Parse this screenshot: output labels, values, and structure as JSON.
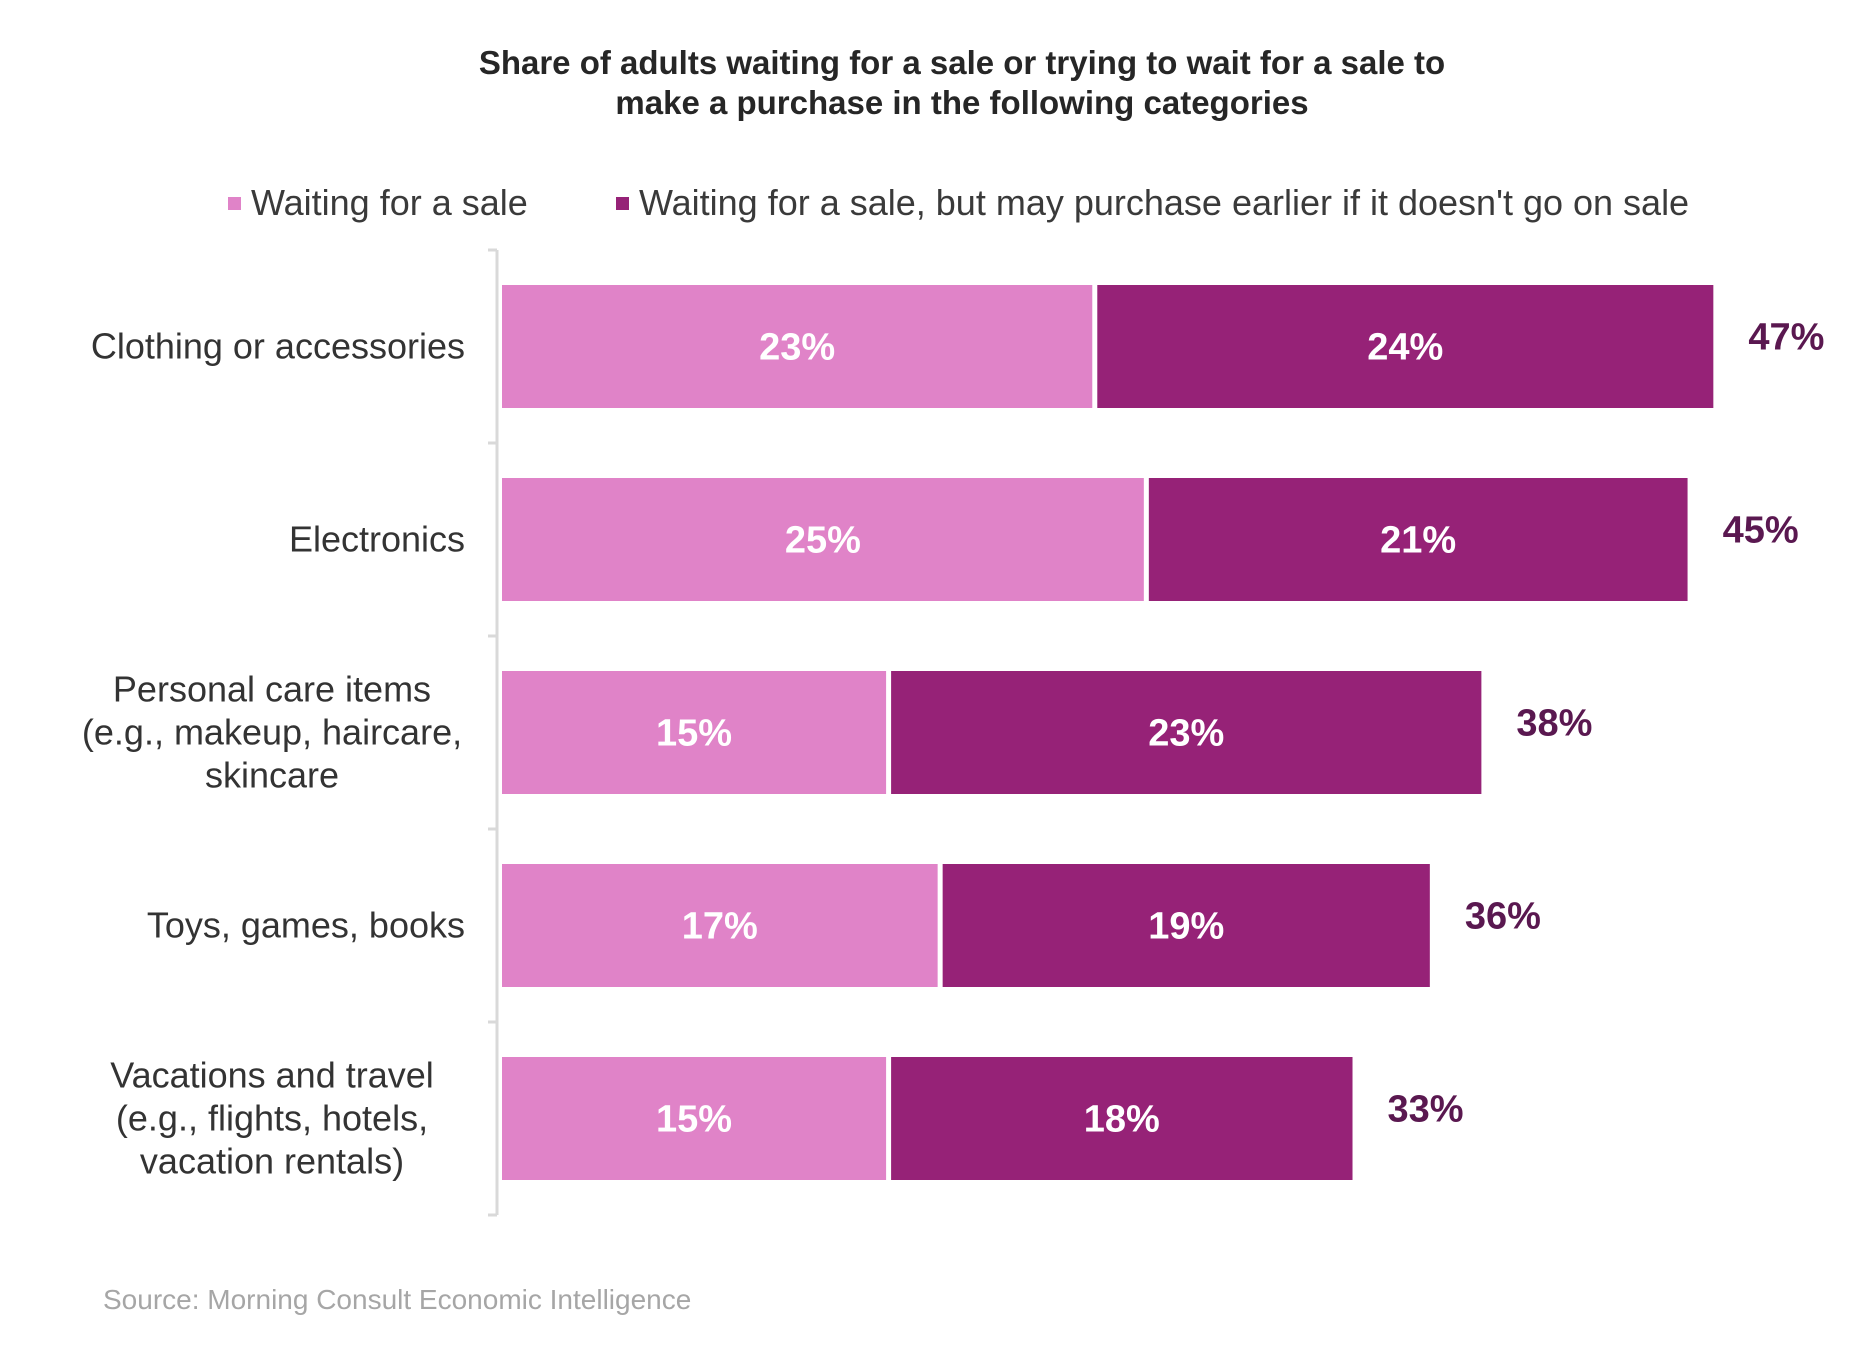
{
  "chart_data": {
    "type": "bar",
    "orientation": "horizontal",
    "stacked": true,
    "title_lines": [
      "Share of adults waiting for a sale or trying to wait for a sale to",
      "make a purchase in the following categories"
    ],
    "legend_position": "top",
    "categories": [
      [
        "Clothing or accessories"
      ],
      [
        "Electronics"
      ],
      [
        "Personal care items",
        "(e.g., makeup, haircare,",
        "skincare"
      ],
      [
        "Toys, games, books"
      ],
      [
        "Vacations and travel",
        "(e.g., flights, hotels,",
        "vacation rentals)"
      ]
    ],
    "series": [
      {
        "name": "Waiting for a sale",
        "color": "#e083c8",
        "values": [
          23,
          25,
          15,
          17,
          15
        ],
        "labels": [
          "23%",
          "25%",
          "15%",
          "17%",
          "15%"
        ]
      },
      {
        "name": "Waiting for a sale, but may purchase earlier if it doesn't go on sale",
        "color": "#962277",
        "values": [
          24,
          21,
          23,
          19,
          18
        ],
        "labels": [
          "24%",
          "21%",
          "23%",
          "19%",
          "18%"
        ]
      }
    ],
    "totals": [
      47,
      45,
      38,
      36,
      33
    ],
    "total_labels": [
      "47%",
      "45%",
      "38%",
      "36%",
      "33%"
    ],
    "total_color": "#5a1850",
    "xlim": [
      0,
      48.5
    ],
    "grid": false,
    "source": "Source: Morning Consult Economic Intelligence"
  }
}
